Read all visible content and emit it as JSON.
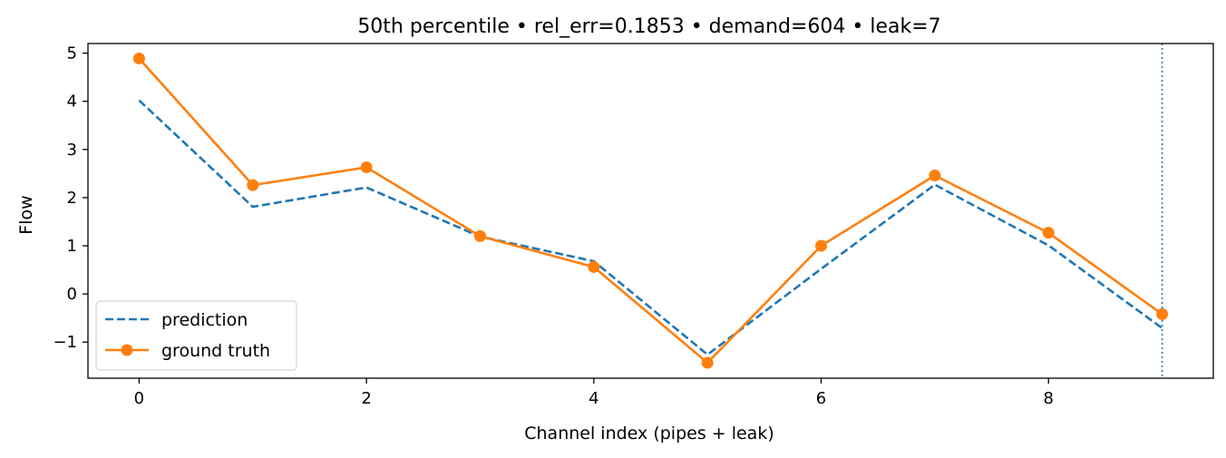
{
  "chart_data": {
    "type": "line",
    "title": "50th percentile • rel_err=0.1853 • demand=604 • leak=7",
    "xlabel": "Channel index (pipes + leak)",
    "ylabel": "Flow",
    "xlim": [
      -0.45,
      9.45
    ],
    "ylim": [
      -1.75,
      5.2
    ],
    "xticks": [
      0,
      2,
      4,
      6,
      8
    ],
    "yticks": [
      -1,
      0,
      1,
      2,
      3,
      4,
      5
    ],
    "grid": false,
    "legend_position": "lower-left",
    "vline_x": 9,
    "x": [
      0,
      1,
      2,
      3,
      4,
      5,
      6,
      7,
      8,
      9
    ],
    "series": [
      {
        "name": "prediction",
        "style": "dashed",
        "color": "#1f77b4",
        "values": [
          4.02,
          1.81,
          2.21,
          1.19,
          0.68,
          -1.26,
          0.52,
          2.27,
          1.01,
          -0.71
        ]
      },
      {
        "name": "ground truth",
        "style": "solid-markers",
        "color": "#ff7f0e",
        "values": [
          4.89,
          2.26,
          2.63,
          1.2,
          0.56,
          -1.43,
          1.0,
          2.46,
          1.27,
          -0.42
        ]
      }
    ]
  }
}
